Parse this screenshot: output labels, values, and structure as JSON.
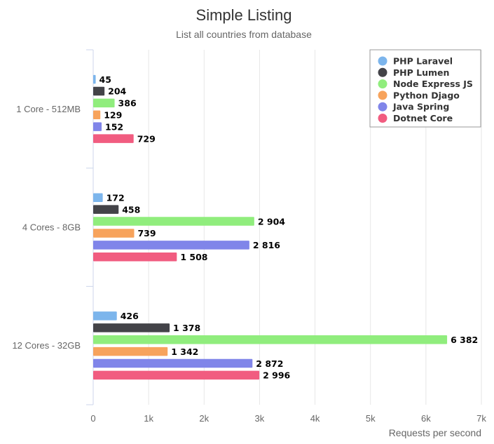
{
  "chart_data": {
    "type": "bar",
    "orientation": "horizontal",
    "title": "Simple Listing",
    "subtitle": "List all countries from database",
    "xlabel": "Requests per second",
    "ylabel": "",
    "xlim": [
      0,
      7000
    ],
    "x_ticks": [
      "0",
      "1k",
      "2k",
      "3k",
      "4k",
      "5k",
      "6k",
      "7k"
    ],
    "x_tick_values": [
      0,
      1000,
      2000,
      3000,
      4000,
      5000,
      6000,
      7000
    ],
    "grid": true,
    "legend_position": "top-right",
    "categories": [
      "1 Core - 512MB",
      "4 Cores - 8GB",
      "12 Cores - 32GB"
    ],
    "series": [
      {
        "name": "PHP Laravel",
        "color": "#7cb5ec",
        "values": [
          45,
          172,
          426
        ],
        "labels": [
          "45",
          "172",
          "426"
        ]
      },
      {
        "name": "PHP Lumen",
        "color": "#434348",
        "values": [
          204,
          458,
          1378
        ],
        "labels": [
          "204",
          "458",
          "1 378"
        ]
      },
      {
        "name": "Node Express JS",
        "color": "#90ed7d",
        "values": [
          386,
          2904,
          6382
        ],
        "labels": [
          "386",
          "2 904",
          "6 382"
        ]
      },
      {
        "name": "Python Djago",
        "color": "#f7a35c",
        "values": [
          129,
          739,
          1342
        ],
        "labels": [
          "129",
          "739",
          "1 342"
        ]
      },
      {
        "name": "Java Spring",
        "color": "#8085e9",
        "values": [
          152,
          2816,
          2872
        ],
        "labels": [
          "152",
          "2 816",
          "2 872"
        ]
      },
      {
        "name": "Dotnet Core",
        "color": "#f15c80",
        "values": [
          729,
          1508,
          2996
        ],
        "labels": [
          "729",
          "1 508",
          "2 996"
        ]
      }
    ]
  }
}
